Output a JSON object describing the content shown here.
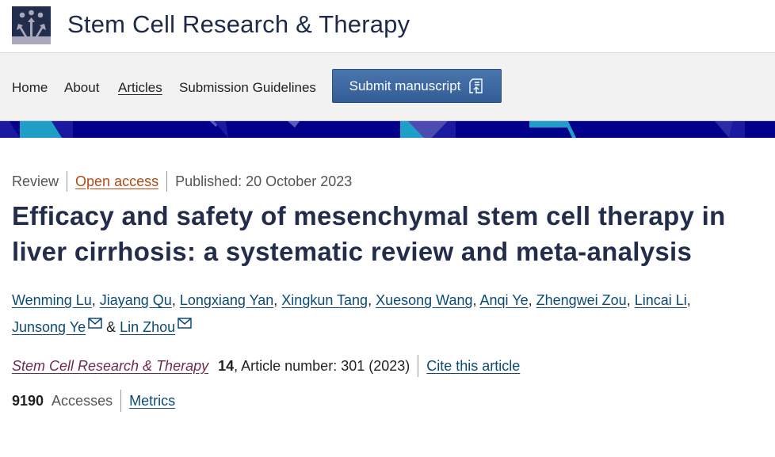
{
  "header": {
    "site_title": "Stem Cell Research & Therapy",
    "logo_icon": "people-arrows-logo"
  },
  "nav": {
    "items": [
      {
        "label": "Home"
      },
      {
        "label": "About"
      },
      {
        "label": "Articles",
        "active": true
      },
      {
        "label": "Submission Guidelines"
      }
    ],
    "submit_label": "Submit manuscript",
    "submit_icon": "upload-document-icon"
  },
  "colors": {
    "banner": "#00008b",
    "accent_light": "#1f9ec8",
    "submit": "#3a659f",
    "open_access": "#b24a11"
  },
  "article": {
    "type": "Review",
    "open_access": "Open access",
    "published": "Published: 20 October 2023",
    "title": "Efficacy and safety of mesenchymal stem cell therapy in liver cirrhosis: a systematic review and meta-analysis",
    "authors": [
      {
        "name": "Wenming Lu"
      },
      {
        "name": "Jiayang Qu"
      },
      {
        "name": "Longxiang Yan"
      },
      {
        "name": "Xingkun Tang"
      },
      {
        "name": "Xuesong Wang"
      },
      {
        "name": "Anqi Ye"
      },
      {
        "name": "Zhengwei Zou"
      },
      {
        "name": "Lincai Li"
      },
      {
        "name": "Junsong Ye",
        "corresponding": true
      },
      {
        "name": "Lin Zhou",
        "corresponding": true
      }
    ],
    "and": "&",
    "journal": "Stem Cell Research & Therapy",
    "volume": "14",
    "article_number": ", Article number: 301 (2023)",
    "cite": "Cite this article",
    "accesses_count": "9190",
    "accesses_label": "Accesses",
    "metrics": "Metrics"
  }
}
